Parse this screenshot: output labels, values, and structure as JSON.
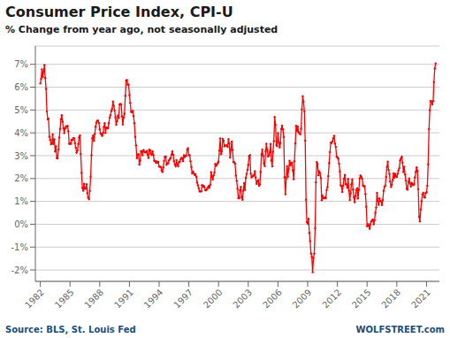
{
  "chart_data": {
    "type": "line",
    "title": "Consumer Price Index, CPI-U",
    "subtitle": "% Change from year ago, not seasonally adjusted",
    "annotations": [
      "Source: BLS, St. Louis Fed",
      "WOLFSTREET.com"
    ],
    "xlim": [
      1981.5,
      2022.3
    ],
    "xticks": [
      1982,
      1985,
      1988,
      1991,
      1994,
      1997,
      2000,
      2003,
      2006,
      2009,
      2012,
      2015,
      2018,
      2021
    ],
    "ylim": [
      -2.5,
      7.8
    ],
    "yticks": [
      {
        "value": -2,
        "label": "-2%"
      },
      {
        "value": -1,
        "label": "-1%"
      },
      {
        "value": 0,
        "label": "0%"
      },
      {
        "value": 1,
        "label": "1%"
      },
      {
        "value": 2,
        "label": "2%"
      },
      {
        "value": 3,
        "label": "3%"
      },
      {
        "value": 4,
        "label": "4%"
      },
      {
        "value": 5,
        "label": "5%"
      },
      {
        "value": 6,
        "label": "6%"
      },
      {
        "value": 7,
        "label": "7%"
      }
    ],
    "grid": true,
    "x": [
      1982.0,
      1982.083,
      1982.167,
      1982.25,
      1982.333,
      1982.417,
      1982.5,
      1982.583,
      1982.667,
      1982.75,
      1982.833,
      1982.917,
      1983.0,
      1983.083,
      1983.167,
      1983.25,
      1983.333,
      1983.417,
      1983.5,
      1983.583,
      1983.667,
      1983.75,
      1983.833,
      1983.917,
      1984.0,
      1984.083,
      1984.167,
      1984.25,
      1984.333,
      1984.417,
      1984.5,
      1984.583,
      1984.667,
      1984.75,
      1984.833,
      1984.917,
      1985.0,
      1985.083,
      1985.167,
      1985.25,
      1985.333,
      1985.417,
      1985.5,
      1985.583,
      1985.667,
      1985.75,
      1985.833,
      1985.917,
      1986.0,
      1986.083,
      1986.167,
      1986.25,
      1986.333,
      1986.417,
      1986.5,
      1986.583,
      1986.667,
      1986.75,
      1986.833,
      1986.917,
      1987.0,
      1987.083,
      1987.167,
      1987.25,
      1987.333,
      1987.417,
      1987.5,
      1987.583,
      1987.667,
      1987.75,
      1987.833,
      1987.917,
      1988.0,
      1988.083,
      1988.167,
      1988.25,
      1988.333,
      1988.417,
      1988.5,
      1988.583,
      1988.667,
      1988.75,
      1988.833,
      1988.917,
      1989.0,
      1989.083,
      1989.167,
      1989.25,
      1989.333,
      1989.417,
      1989.5,
      1989.583,
      1989.667,
      1989.75,
      1989.833,
      1989.917,
      1990.0,
      1990.083,
      1990.167,
      1990.25,
      1990.333,
      1990.417,
      1990.5,
      1990.583,
      1990.667,
      1990.75,
      1990.833,
      1990.917,
      1991.0,
      1991.083,
      1991.167,
      1991.25,
      1991.333,
      1991.417,
      1991.5,
      1991.583,
      1991.667,
      1991.75,
      1991.833,
      1991.917,
      1992.0,
      1992.083,
      1992.167,
      1992.25,
      1992.333,
      1992.417,
      1992.5,
      1992.583,
      1992.667,
      1992.75,
      1992.833,
      1992.917,
      1993.0,
      1993.083,
      1993.167,
      1993.25,
      1993.333,
      1993.417,
      1993.5,
      1993.583,
      1993.667,
      1993.75,
      1993.833,
      1993.917,
      1994.0,
      1994.083,
      1994.167,
      1994.25,
      1994.333,
      1994.417,
      1994.5,
      1994.583,
      1994.667,
      1994.75,
      1994.833,
      1994.917,
      1995.0,
      1995.083,
      1995.167,
      1995.25,
      1995.333,
      1995.417,
      1995.5,
      1995.583,
      1995.667,
      1995.75,
      1995.833,
      1995.917,
      1996.0,
      1996.083,
      1996.167,
      1996.25,
      1996.333,
      1996.417,
      1996.5,
      1996.583,
      1996.667,
      1996.75,
      1996.833,
      1996.917,
      1997.0,
      1997.083,
      1997.167,
      1997.25,
      1997.333,
      1997.417,
      1997.5,
      1997.583,
      1997.667,
      1997.75,
      1997.833,
      1997.917,
      1998.0,
      1998.083,
      1998.167,
      1998.25,
      1998.333,
      1998.417,
      1998.5,
      1998.583,
      1998.667,
      1998.75,
      1998.833,
      1998.917,
      1999.0,
      1999.083,
      1999.167,
      1999.25,
      1999.333,
      1999.417,
      1999.5,
      1999.583,
      1999.667,
      1999.75,
      1999.833,
      1999.917,
      2000.0,
      2000.083,
      2000.167,
      2000.25,
      2000.333,
      2000.417,
      2000.5,
      2000.583,
      2000.667,
      2000.75,
      2000.833,
      2000.917,
      2001.0,
      2001.083,
      2001.167,
      2001.25,
      2001.333,
      2001.417,
      2001.5,
      2001.583,
      2001.667,
      2001.75,
      2001.833,
      2001.917,
      2002.0,
      2002.083,
      2002.167,
      2002.25,
      2002.333,
      2002.417,
      2002.5,
      2002.583,
      2002.667,
      2002.75,
      2002.833,
      2002.917,
      2003.0,
      2003.083,
      2003.167,
      2003.25,
      2003.333,
      2003.417,
      2003.5,
      2003.583,
      2003.667,
      2003.75,
      2003.833,
      2003.917,
      2004.0,
      2004.083,
      2004.167,
      2004.25,
      2004.333,
      2004.417,
      2004.5,
      2004.583,
      2004.667,
      2004.75,
      2004.833,
      2004.917,
      2005.0,
      2005.083,
      2005.167,
      2005.25,
      2005.333,
      2005.417,
      2005.5,
      2005.583,
      2005.667,
      2005.75,
      2005.833,
      2005.917,
      2006.0,
      2006.083,
      2006.167,
      2006.25,
      2006.333,
      2006.417,
      2006.5,
      2006.583,
      2006.667,
      2006.75,
      2006.833,
      2006.917,
      2007.0,
      2007.083,
      2007.167,
      2007.25,
      2007.333,
      2007.417,
      2007.5,
      2007.583,
      2007.667,
      2007.75,
      2007.833,
      2007.917,
      2008.0,
      2008.083,
      2008.167,
      2008.25,
      2008.333,
      2008.417,
      2008.5,
      2008.583,
      2008.667,
      2008.75,
      2008.833,
      2008.917,
      2009.0,
      2009.083,
      2009.167,
      2009.25,
      2009.333,
      2009.417,
      2009.5,
      2009.583,
      2009.667,
      2009.75,
      2009.833,
      2009.917,
      2010.0,
      2010.083,
      2010.167,
      2010.25,
      2010.333,
      2010.417,
      2010.5,
      2010.583,
      2010.667,
      2010.75,
      2010.833,
      2010.917,
      2011.0,
      2011.083,
      2011.167,
      2011.25,
      2011.333,
      2011.417,
      2011.5,
      2011.583,
      2011.667,
      2011.75,
      2011.833,
      2011.917,
      2012.0,
      2012.083,
      2012.167,
      2012.25,
      2012.333,
      2012.417,
      2012.5,
      2012.583,
      2012.667,
      2012.75,
      2012.833,
      2012.917,
      2013.0,
      2013.083,
      2013.167,
      2013.25,
      2013.333,
      2013.417,
      2013.5,
      2013.583,
      2013.667,
      2013.75,
      2013.833,
      2013.917,
      2014.0,
      2014.083,
      2014.167,
      2014.25,
      2014.333,
      2014.417,
      2014.5,
      2014.583,
      2014.667,
      2014.75,
      2014.833,
      2014.917,
      2015.0,
      2015.083,
      2015.167,
      2015.25,
      2015.333,
      2015.417,
      2015.5,
      2015.583,
      2015.667,
      2015.75,
      2015.833,
      2015.917,
      2016.0,
      2016.083,
      2016.167,
      2016.25,
      2016.333,
      2016.417,
      2016.5,
      2016.583,
      2016.667,
      2016.75,
      2016.833,
      2016.917,
      2017.0,
      2017.083,
      2017.167,
      2017.25,
      2017.333,
      2017.417,
      2017.5,
      2017.583,
      2017.667,
      2017.75,
      2017.833,
      2017.917,
      2018.0,
      2018.083,
      2018.167,
      2018.25,
      2018.333,
      2018.417,
      2018.5,
      2018.583,
      2018.667,
      2018.75,
      2018.833,
      2018.917,
      2019.0,
      2019.083,
      2019.167,
      2019.25,
      2019.333,
      2019.417,
      2019.5,
      2019.583,
      2019.667,
      2019.75,
      2019.833,
      2019.917,
      2020.0,
      2020.083,
      2020.167,
      2020.25,
      2020.333,
      2020.417,
      2020.5,
      2020.583,
      2020.667,
      2020.75,
      2020.833,
      2020.917,
      2021.0,
      2021.083,
      2021.167,
      2021.25,
      2021.333,
      2021.417,
      2021.5,
      2021.583,
      2021.667,
      2021.75,
      2021.833,
      2021.917
    ],
    "series": [
      {
        "color": "#FF0000",
        "marker": "circle",
        "values": [
          6.16,
          6.37,
          6.78,
          6.44,
          6.68,
          6.97,
          6.4,
          5.92,
          4.94,
          4.59,
          4.62,
          3.83,
          3.69,
          3.5,
          3.55,
          3.94,
          3.51,
          3.72,
          3.18,
          3.41,
          2.89,
          2.88,
          3.27,
          3.79,
          4.17,
          4.59,
          4.77,
          4.49,
          4.21,
          3.99,
          4.19,
          4.28,
          4.27,
          4.31,
          4.07,
          3.52,
          3.53,
          3.52,
          3.7,
          3.69,
          3.77,
          3.76,
          3.55,
          3.35,
          3.14,
          3.23,
          3.51,
          3.8,
          3.89,
          3.08,
          2.25,
          1.59,
          1.47,
          1.77,
          1.56,
          1.56,
          1.75,
          1.36,
          1.16,
          1.1,
          1.46,
          2.08,
          3.02,
          3.76,
          3.88,
          3.65,
          3.95,
          4.27,
          4.45,
          4.53,
          4.53,
          4.43,
          4.15,
          3.98,
          3.93,
          3.87,
          4.0,
          4.26,
          4.42,
          4.0,
          4.23,
          4.23,
          4.2,
          4.42,
          4.67,
          4.77,
          4.96,
          5.05,
          5.37,
          5.18,
          4.98,
          4.67,
          4.35,
          4.52,
          4.74,
          4.65,
          5.24,
          5.27,
          5.23,
          4.72,
          4.36,
          4.67,
          4.84,
          5.62,
          6.29,
          6.31,
          6.11,
          6.11,
          5.65,
          5.31,
          4.92,
          4.91,
          4.96,
          4.73,
          4.42,
          3.82,
          3.45,
          2.89,
          3.04,
          3.06,
          2.61,
          2.79,
          3.2,
          3.19,
          3.02,
          3.24,
          3.17,
          3.16,
          3.14,
          3.2,
          3.04,
          2.9,
          3.26,
          3.24,
          3.09,
          3.04,
          3.19,
          3.03,
          2.78,
          2.77,
          2.7,
          2.75,
          2.69,
          2.73,
          2.52,
          2.51,
          2.51,
          2.36,
          2.29,
          2.49,
          2.77,
          2.96,
          2.96,
          2.61,
          2.67,
          2.67,
          2.8,
          2.86,
          2.9,
          3.05,
          3.19,
          3.04,
          2.76,
          2.62,
          2.54,
          2.81,
          2.62,
          2.54,
          2.73,
          2.73,
          2.84,
          2.9,
          2.89,
          2.76,
          3.01,
          2.94,
          3.0,
          3.0,
          3.27,
          3.32,
          3.03,
          3.02,
          2.76,
          2.5,
          2.23,
          2.3,
          2.23,
          2.16,
          2.19,
          2.08,
          1.83,
          1.7,
          1.57,
          1.44,
          1.44,
          1.44,
          1.71,
          1.65,
          1.68,
          1.62,
          1.49,
          1.49,
          1.54,
          1.6,
          1.67,
          1.6,
          1.73,
          2.28,
          2.09,
          1.96,
          2.14,
          2.26,
          2.63,
          2.56,
          2.62,
          2.68,
          2.74,
          3.22,
          3.76,
          3.07,
          3.19,
          3.73,
          3.66,
          3.41,
          3.45,
          3.45,
          3.45,
          3.39,
          3.73,
          3.53,
          2.92,
          3.27,
          3.62,
          3.25,
          2.72,
          2.72,
          2.65,
          2.13,
          1.9,
          1.55,
          1.14,
          1.14,
          1.48,
          1.64,
          1.18,
          1.07,
          1.46,
          1.8,
          1.51,
          2.03,
          2.2,
          2.38,
          2.6,
          2.98,
          3.02,
          2.22,
          2.06,
          2.11,
          2.11,
          2.16,
          2.32,
          2.04,
          1.77,
          1.88,
          1.93,
          1.69,
          1.74,
          2.29,
          3.05,
          3.27,
          2.99,
          2.65,
          2.54,
          3.19,
          3.52,
          3.26,
          2.97,
          3.01,
          3.15,
          3.51,
          2.8,
          2.53,
          3.17,
          3.64,
          4.69,
          4.35,
          3.46,
          3.42,
          3.99,
          3.6,
          3.36,
          3.55,
          4.17,
          4.32,
          4.15,
          3.82,
          2.06,
          1.31,
          2.0,
          2.54,
          2.08,
          2.42,
          2.78,
          2.57,
          2.69,
          2.69,
          2.36,
          1.97,
          2.76,
          3.54,
          4.31,
          4.08,
          4.28,
          4.03,
          3.98,
          3.94,
          4.18,
          5.02,
          5.6,
          5.37,
          4.94,
          3.66,
          1.07,
          0.09,
          0.03,
          0.24,
          -0.38,
          -0.74,
          -1.28,
          -1.43,
          -2.1,
          -1.48,
          -1.29,
          -0.18,
          1.84,
          2.72,
          2.63,
          2.14,
          2.31,
          2.24,
          2.02,
          1.05,
          1.24,
          1.15,
          1.14,
          1.17,
          1.14,
          1.5,
          1.63,
          2.11,
          2.68,
          3.16,
          3.57,
          3.56,
          3.63,
          3.77,
          3.87,
          3.53,
          3.39,
          2.96,
          2.93,
          2.87,
          2.65,
          2.3,
          1.7,
          1.66,
          1.41,
          1.69,
          1.99,
          2.16,
          1.76,
          1.74,
          1.59,
          1.98,
          1.47,
          1.06,
          1.36,
          1.75,
          1.96,
          1.52,
          1.18,
          0.96,
          1.24,
          1.5,
          1.58,
          1.13,
          1.51,
          2.0,
          2.13,
          2.07,
          1.99,
          1.7,
          1.66,
          1.66,
          1.32,
          0.76,
          -0.09,
          0.0,
          -0.07,
          -0.2,
          0.0,
          0.12,
          0.17,
          0.2,
          0.0,
          0.17,
          0.5,
          0.73,
          1.37,
          1.02,
          0.85,
          1.13,
          1.02,
          1.0,
          0.84,
          1.06,
          1.46,
          1.64,
          1.69,
          2.07,
          2.5,
          2.74,
          2.38,
          2.2,
          1.87,
          1.63,
          1.73,
          1.94,
          2.23,
          2.04,
          2.2,
          2.11,
          2.07,
          2.21,
          2.36,
          2.46,
          2.8,
          2.87,
          2.95,
          2.7,
          2.28,
          2.52,
          2.18,
          1.91,
          1.55,
          1.52,
          1.86,
          2.0,
          1.79,
          1.65,
          1.81,
          1.75,
          1.71,
          1.76,
          2.05,
          2.29,
          2.49,
          2.33,
          1.54,
          0.33,
          0.12,
          0.65,
          1.01,
          1.31,
          1.37,
          1.18,
          1.17,
          1.36,
          1.4,
          1.68,
          2.62,
          4.16,
          4.99,
          5.39,
          5.37,
          5.25,
          5.39,
          6.22,
          6.81,
          7.04
        ]
      }
    ]
  }
}
